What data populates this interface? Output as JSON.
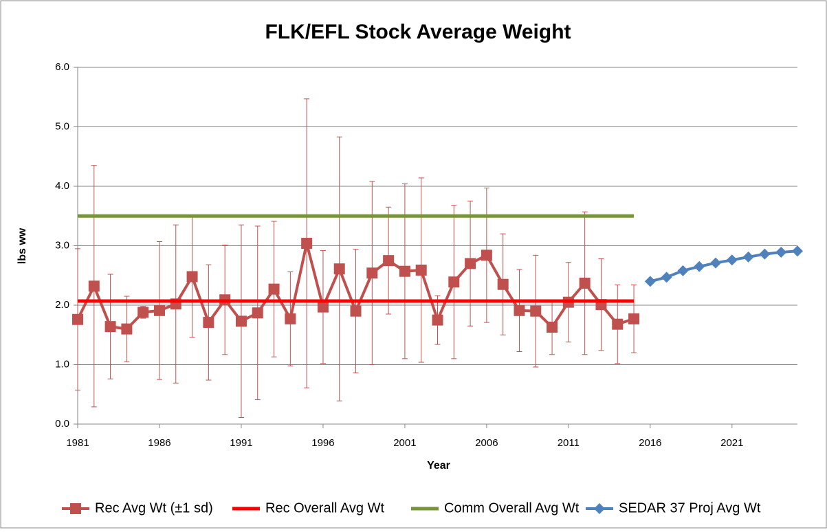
{
  "chart_data": {
    "type": "line",
    "title": "FLK/EFL Stock Average Weight",
    "x_label": "Year",
    "y_label": "lbs ww",
    "xlim": [
      1981,
      2025
    ],
    "xticks": [
      1981,
      1986,
      1991,
      1996,
      2001,
      2006,
      2011,
      2016,
      2021
    ],
    "ylim": [
      0,
      6
    ],
    "yticks": [
      {
        "value": 0,
        "label": "0.0"
      },
      {
        "value": 1,
        "label": "1.0"
      },
      {
        "value": 2,
        "label": "2.0"
      },
      {
        "value": 3,
        "label": "3.0"
      },
      {
        "value": 4,
        "label": "4.0"
      },
      {
        "value": 5,
        "label": "5.0"
      },
      {
        "value": 6,
        "label": "6.0"
      }
    ],
    "grid": true,
    "legend": "bottom",
    "series": [
      {
        "name": "Rec Avg Wt (±1 sd)",
        "color": "#c0504d",
        "marker": "square",
        "x": [
          1981,
          1982,
          1983,
          1984,
          1985,
          1986,
          1987,
          1988,
          1989,
          1990,
          1991,
          1992,
          1993,
          1994,
          1995,
          1996,
          1997,
          1998,
          1999,
          2000,
          2001,
          2002,
          2003,
          2004,
          2005,
          2006,
          2007,
          2008,
          2009,
          2010,
          2011,
          2012,
          2013,
          2014,
          2015
        ],
        "values": [
          1.76,
          2.32,
          1.64,
          1.6,
          1.88,
          1.91,
          2.02,
          2.48,
          1.71,
          2.09,
          1.73,
          1.87,
          2.27,
          1.77,
          3.04,
          1.97,
          2.61,
          1.9,
          2.54,
          2.75,
          2.57,
          2.59,
          1.75,
          2.39,
          2.7,
          2.84,
          2.35,
          1.91,
          1.9,
          1.63,
          2.05,
          2.37,
          2.01,
          1.68,
          1.77
        ],
        "errors": [
          1.19,
          2.03,
          0.88,
          0.55,
          0.1,
          1.16,
          1.33,
          1.02,
          0.97,
          0.92,
          1.62,
          1.46,
          1.14,
          0.79,
          2.43,
          0.95,
          2.22,
          1.04,
          1.54,
          0.9,
          1.47,
          1.55,
          0.41,
          1.29,
          1.05,
          1.13,
          0.85,
          0.69,
          0.94,
          0.46,
          0.67,
          1.2,
          0.77,
          0.66,
          0.57
        ]
      },
      {
        "name": "Rec Overall Avg Wt",
        "color": "#ff0000",
        "marker": "none",
        "x": [
          1981,
          2015
        ],
        "values": [
          2.07,
          2.07
        ]
      },
      {
        "name": "Comm Overall Avg Wt",
        "color": "#77933c",
        "marker": "none",
        "x": [
          1981,
          2015
        ],
        "values": [
          3.5,
          3.5
        ]
      },
      {
        "name": "SEDAR 37 Proj Avg Wt",
        "color": "#4f81bd",
        "marker": "diamond",
        "x": [
          2016,
          2017,
          2018,
          2019,
          2020,
          2021,
          2022,
          2023,
          2024,
          2025
        ],
        "values": [
          2.4,
          2.47,
          2.58,
          2.65,
          2.71,
          2.76,
          2.81,
          2.86,
          2.89,
          2.91
        ]
      }
    ]
  }
}
